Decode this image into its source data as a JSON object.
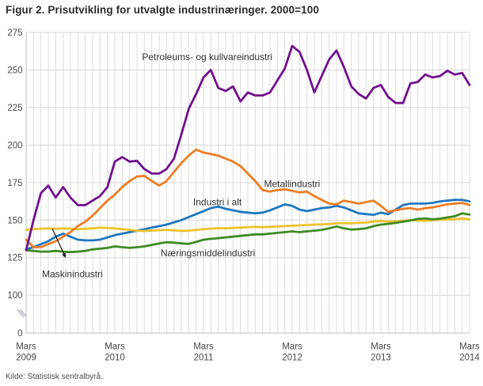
{
  "chart_data": {
    "type": "line",
    "title": "Figur 2. Prisutvikling for utvalgte industrinæringer. 2000=100",
    "source": "Kilde: Statistisk sentralbyrå.",
    "x_axis": {
      "unit": "month",
      "months": 61,
      "tick_every": 12,
      "tick_labels": [
        [
          "Mars",
          "2009"
        ],
        [
          "Mars",
          "2010"
        ],
        [
          "Mars",
          "2011"
        ],
        [
          "Mars",
          "2012"
        ],
        [
          "Mars",
          "2013"
        ],
        [
          "Mars",
          "2014"
        ]
      ]
    },
    "y_axis": {
      "ticks": [
        275,
        250,
        225,
        200,
        175,
        150,
        125,
        100
      ],
      "zero_label": "0",
      "axis_break": true,
      "range_shown": [
        100,
        275
      ]
    },
    "grid": {
      "vertical": "monthly",
      "horizontal": "every 25 units"
    },
    "series": [
      {
        "id": "petroleum",
        "name": "Petroleums- og kullvareindustri",
        "color": "#71108d",
        "values": [
          130,
          150,
          168,
          173,
          165,
          172,
          165,
          160,
          160,
          163,
          166,
          172,
          189,
          192,
          189,
          189.5,
          184,
          181,
          181,
          184,
          191,
          207,
          224,
          234,
          245,
          250,
          238,
          236,
          239,
          229,
          235,
          233,
          233,
          235,
          243,
          251,
          266,
          262,
          250,
          235,
          246,
          257,
          263,
          252,
          239,
          234,
          231,
          238,
          240,
          232,
          228,
          228,
          241,
          242,
          247,
          245,
          246,
          249.5,
          247,
          248,
          240
        ]
      },
      {
        "id": "metall",
        "name": "Metallindustri",
        "color": "#ef7d23",
        "values": [
          137,
          132,
          132,
          134,
          136,
          139,
          142,
          146,
          149,
          153,
          158,
          163,
          167,
          172,
          176,
          179,
          179.5,
          176,
          173,
          176,
          182,
          188,
          193,
          197,
          195,
          194,
          193,
          191,
          189,
          186,
          181,
          176,
          170,
          169,
          170,
          170.5,
          169.5,
          168.5,
          169,
          166,
          163.5,
          161,
          160.5,
          163,
          162,
          161,
          162,
          163,
          159.5,
          155.5,
          156.5,
          157.5,
          158,
          157,
          158,
          158.5,
          159.5,
          160.5,
          161,
          161.5,
          160
        ]
      },
      {
        "id": "industri-i-alt",
        "name": "Industri i alt",
        "color": "#1f77c0",
        "values": [
          130.5,
          132,
          134,
          136,
          139,
          141,
          139,
          137,
          136.5,
          136.5,
          137,
          138.5,
          140,
          141,
          142,
          143,
          144,
          145,
          146,
          147,
          148.5,
          150,
          152,
          154,
          156,
          158,
          159,
          157.5,
          156.5,
          155.5,
          155,
          154.5,
          155,
          156.5,
          158.5,
          160.5,
          159.5,
          157,
          156,
          157,
          158,
          158.5,
          159.5,
          158.5,
          156.5,
          154.5,
          154,
          153.5,
          155,
          154,
          157,
          160,
          161,
          161,
          161,
          161.5,
          162.5,
          163,
          163.5,
          163.5,
          162.5
        ]
      },
      {
        "id": "maskin",
        "name": "Maskinindustri",
        "color": "#eec22e",
        "values": [
          143.5,
          144,
          144.3,
          144.5,
          144.2,
          144.5,
          144.3,
          144,
          144.2,
          144.5,
          145,
          144.8,
          144.5,
          144,
          143.5,
          143,
          142.8,
          143,
          143.3,
          143.5,
          143.2,
          142.8,
          143,
          143.5,
          144,
          144.3,
          144.7,
          144.5,
          144.8,
          145,
          145.3,
          145.5,
          145.3,
          145.5,
          145.8,
          146,
          146.3,
          146.5,
          146.8,
          147,
          147.2,
          147.4,
          147.9,
          148,
          147.9,
          148.2,
          148.4,
          149,
          149.5,
          148.9,
          149.2,
          149.5,
          150,
          149.7,
          149.5,
          150,
          150.3,
          150.5,
          150.5,
          151.1,
          150.5
        ]
      },
      {
        "id": "naeringsmiddel",
        "name": "Næringsmiddelindustri",
        "color": "#3d8b22",
        "values": [
          130,
          129.5,
          129,
          129,
          129.5,
          129,
          128.7,
          129,
          129.5,
          130.5,
          131,
          131.5,
          132.5,
          132,
          131.5,
          132,
          132.5,
          133.5,
          134.5,
          135.3,
          135,
          134.5,
          134.2,
          135.5,
          137,
          137.5,
          138,
          138.5,
          139,
          139.5,
          140,
          140.5,
          140.5,
          141,
          141.5,
          142,
          142.5,
          142,
          142.5,
          143,
          143.5,
          144.5,
          145.8,
          144.5,
          143.7,
          144,
          144.5,
          146,
          147,
          147.5,
          148.2,
          149,
          149.8,
          150.8,
          151.1,
          150.5,
          151,
          151.8,
          152.6,
          154.5,
          153.7
        ]
      }
    ],
    "draw_order": [
      "industri-i-alt",
      "maskin",
      "naeringsmiddel",
      "metall",
      "petroleum"
    ],
    "labels": [
      {
        "text": "Petroleums- og kullvareindustri",
        "month": 24.5,
        "value": 256.5,
        "anchor": "middle"
      },
      {
        "text": "Metallindustri",
        "month": 32.2,
        "value": 172,
        "anchor": "start"
      },
      {
        "text": "Industri i alt",
        "month": 22.6,
        "value": 160,
        "anchor": "start"
      },
      {
        "text": "Næringsmiddelindustri",
        "month": 18.2,
        "value": 126,
        "anchor": "start"
      },
      {
        "text": "Maskinindustri",
        "month": 2.15,
        "value": 112,
        "anchor": "start"
      }
    ],
    "arrow": {
      "from_month": 3.54,
      "from_value": 144.3,
      "to_month": 5.36,
      "to_value": 124.8
    }
  }
}
